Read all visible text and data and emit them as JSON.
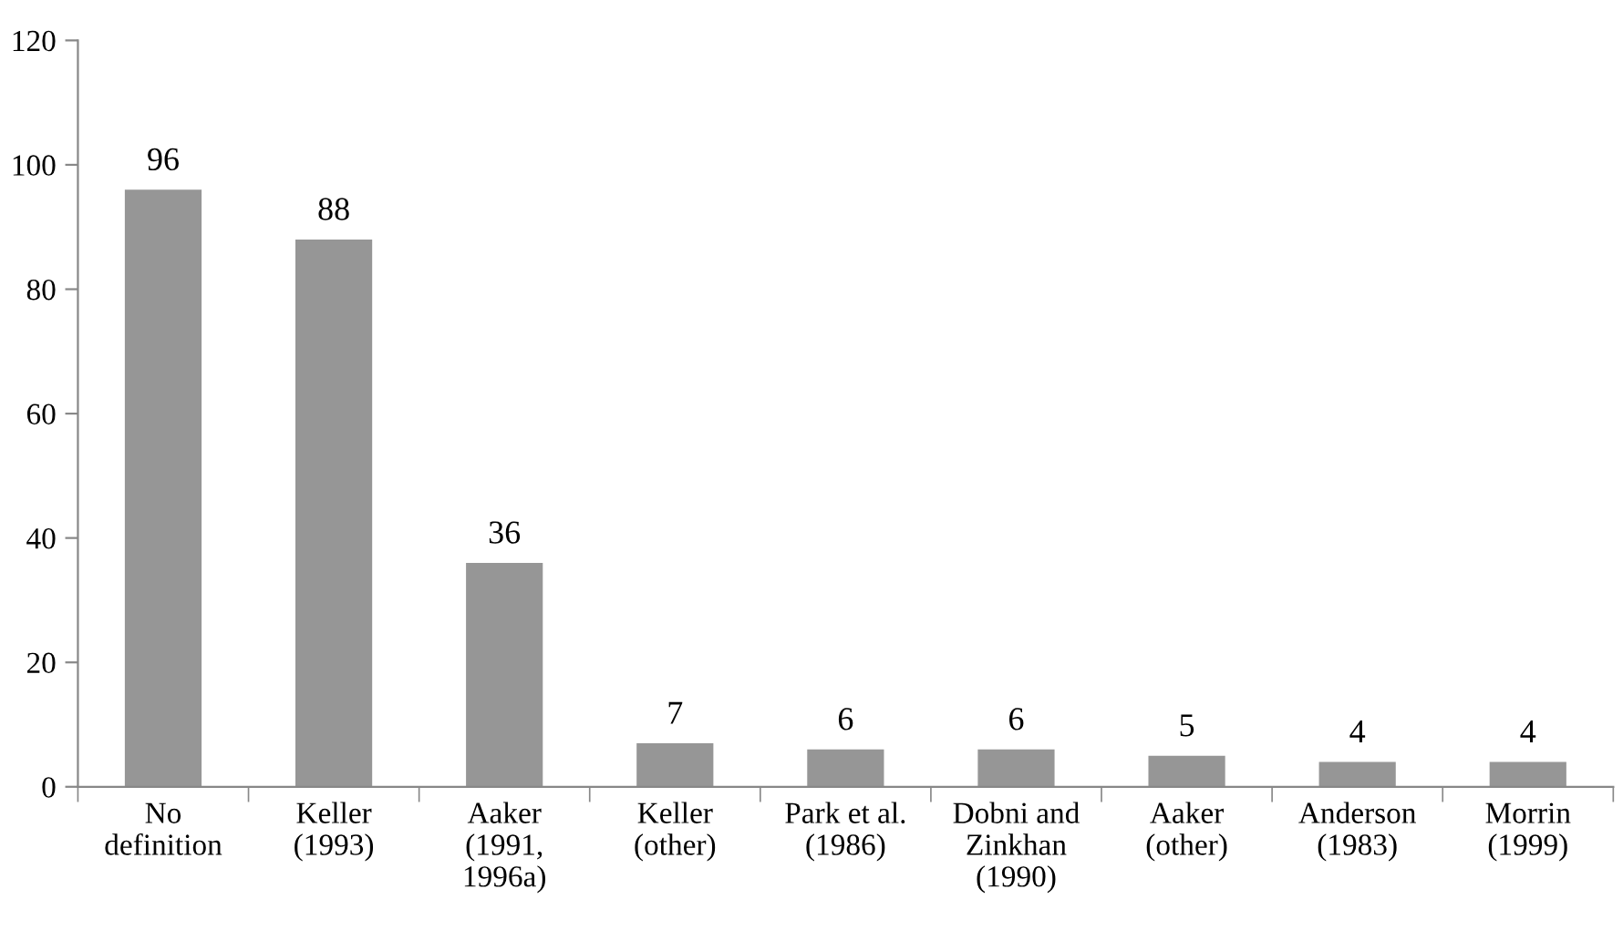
{
  "chart_data": {
    "type": "bar",
    "categories": [
      "No\ndefinition",
      "Keller\n(1993)",
      "Aaker\n(1991,\n1996a)",
      "Keller\n(other)",
      "Park et al.\n(1986)",
      "Dobni and\nZinkhan\n(1990)",
      "Aaker\n(other)",
      "Anderson\n(1983)",
      "Morrin\n(1999)"
    ],
    "values": [
      96,
      88,
      36,
      7,
      6,
      6,
      5,
      4,
      4
    ],
    "color": "#969696",
    "ylim": [
      0,
      120
    ],
    "yticks": [
      0,
      20,
      40,
      60,
      80,
      100,
      120
    ],
    "data_labels": true,
    "grid": false,
    "legend": false
  }
}
